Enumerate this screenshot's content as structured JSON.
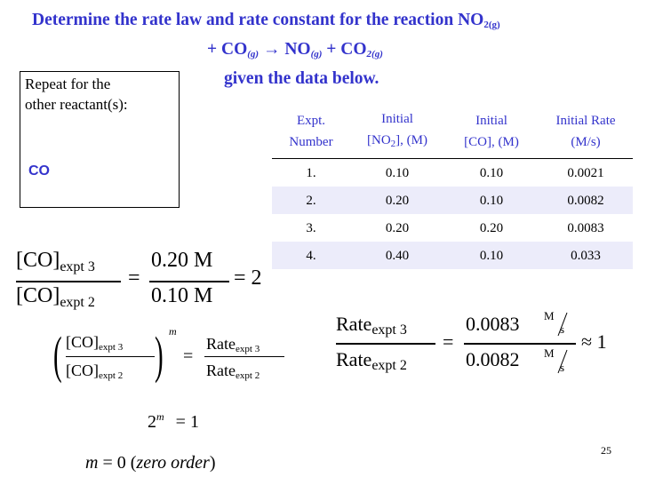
{
  "title": {
    "line1": "Determine the rate law and rate constant for the reaction NO",
    "no2_sub": "2(g)",
    "line2_plus1": "+ CO",
    "co_sub": "(g)",
    "arrow": "→",
    "no": " NO",
    "no_sub": "(g)",
    "plus2": " + CO",
    "co2_sub": "2(g)",
    "line3": "given the data below."
  },
  "side_box": {
    "line1": "Repeat for the",
    "line2": "other reactant(s):",
    "reactant": "CO"
  },
  "table": {
    "headers": [
      {
        "l1": "Expt.",
        "l2": "Number"
      },
      {
        "l1": "Initial",
        "l2a": "[NO",
        "l2sub": "2",
        "l2b": "], (M)"
      },
      {
        "l1": "Initial",
        "l2": "[CO], (M)"
      },
      {
        "l1": "Initial Rate",
        "l2": "(M/s)"
      }
    ],
    "rows": [
      [
        "1.",
        "0.10",
        "0.10",
        "0.0021"
      ],
      [
        "2.",
        "0.20",
        "0.10",
        "0.0082"
      ],
      [
        "3.",
        "0.20",
        "0.20",
        "0.0083"
      ],
      [
        "4.",
        "0.40",
        "0.10",
        "0.033"
      ]
    ]
  },
  "eq1": {
    "num": "[CO]",
    "num_sub": "expt 3",
    "den": "[CO]",
    "den_sub": "expt 2",
    "eq": "=",
    "rnum": "0.20 M",
    "rden": "0.10 M",
    "result": "= 2"
  },
  "eq2": {
    "num": "[CO]",
    "num_sub": "expt 3",
    "den": "[CO]",
    "den_sub": "expt 2",
    "exp": "m",
    "eq": "=",
    "rnum": "Rate",
    "rnum_sub": "expt 3",
    "rden": "Rate",
    "rden_sub": "expt 2"
  },
  "eq3": {
    "base": "2",
    "exp": "m",
    "rest": "= 1"
  },
  "eq4": {
    "lhs": "m",
    "rhs": "= 0 (",
    "text": "zero order",
    "close": ")"
  },
  "eq5": {
    "num": "Rate",
    "num_sub": "expt 3",
    "den": "Rate",
    "den_sub": "expt 2",
    "eq": "=",
    "vnum": "0.0083",
    "vden": "0.0082",
    "unit_m": "M",
    "unit_s": "s",
    "approx": "≈ 1"
  },
  "page_number": "25",
  "colors": {
    "accent": "#3333cc",
    "row_tint": "#ececfa"
  }
}
